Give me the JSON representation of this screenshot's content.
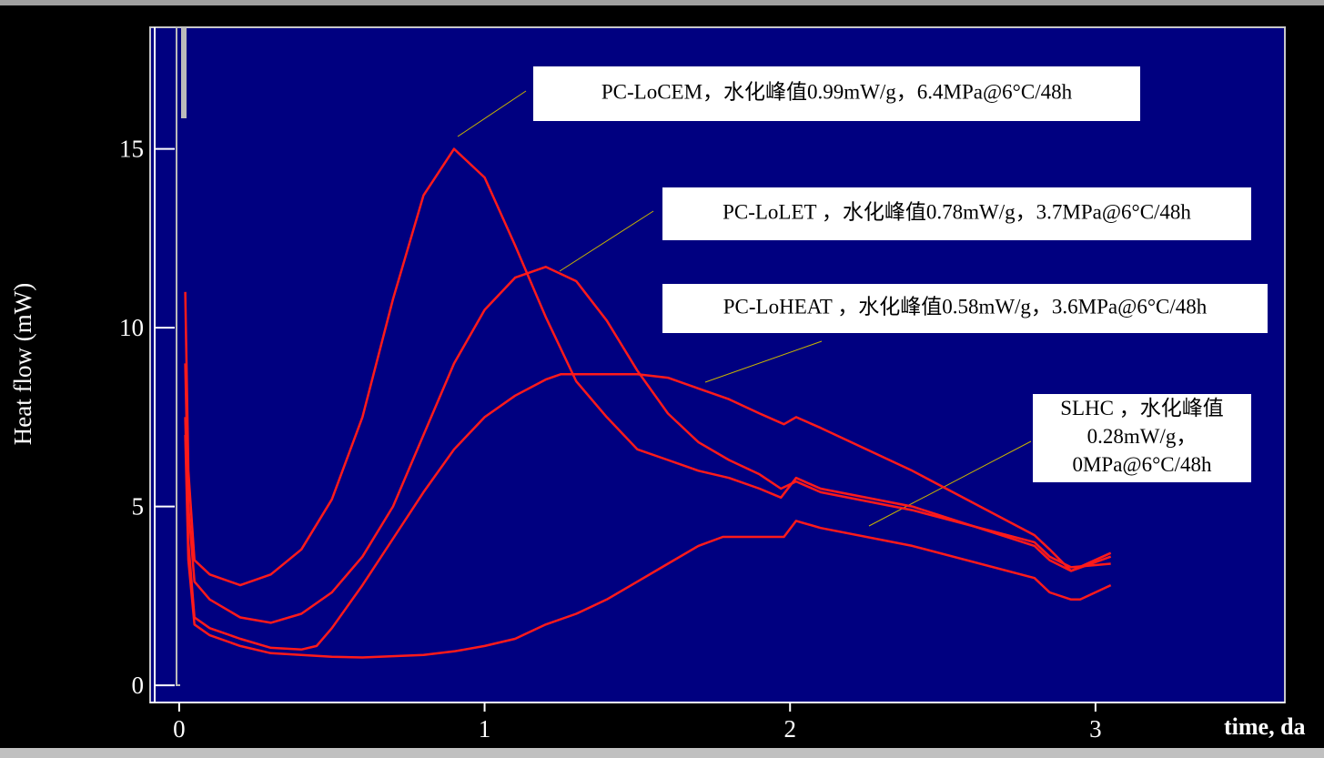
{
  "chart_data": {
    "type": "line",
    "xlabel": "time, da",
    "ylabel": "Heat flow (mW)",
    "xlim": [
      -0.095,
      3.62
    ],
    "ylim": [
      -0.48,
      18.4
    ],
    "xticks": [
      0,
      1,
      2,
      3
    ],
    "yticks": [
      0,
      5,
      10,
      15
    ],
    "series": [
      {
        "color": "#ff1a1a",
        "x": [
          0.02,
          0.03,
          0.05,
          0.1,
          0.2,
          0.3,
          0.4,
          0.5,
          0.6,
          0.7,
          0.8,
          0.9,
          1.0,
          1.1,
          1.2,
          1.3,
          1.4,
          1.5,
          1.6,
          1.7,
          1.8,
          1.9,
          1.97,
          2.02,
          2.1,
          2.4,
          2.8,
          2.85,
          2.92,
          3.05
        ],
        "values": [
          11,
          6,
          3.5,
          3.1,
          2.8,
          3.1,
          3.8,
          5.2,
          7.5,
          10.8,
          13.7,
          15,
          14.2,
          12.3,
          10.3,
          8.5,
          7.5,
          6.6,
          6.3,
          6.0,
          5.8,
          5.5,
          5.25,
          5.8,
          5.5,
          5.0,
          3.9,
          3.5,
          3.2,
          3.6
        ]
      },
      {
        "color": "#ff1a1a",
        "x": [
          0.02,
          0.03,
          0.05,
          0.1,
          0.2,
          0.3,
          0.4,
          0.5,
          0.6,
          0.7,
          0.8,
          0.9,
          1.0,
          1.1,
          1.2,
          1.3,
          1.4,
          1.5,
          1.6,
          1.7,
          1.8,
          1.9,
          1.97,
          2.02,
          2.1,
          2.4,
          2.8,
          2.85,
          2.92,
          3.05
        ],
        "values": [
          9,
          5,
          2.9,
          2.4,
          1.9,
          1.75,
          2.0,
          2.6,
          3.6,
          5.0,
          7.0,
          9.0,
          10.5,
          11.4,
          11.7,
          11.3,
          10.2,
          8.8,
          7.6,
          6.8,
          6.3,
          5.9,
          5.5,
          5.7,
          5.4,
          4.9,
          4.0,
          3.6,
          3.3,
          3.4
        ]
      },
      {
        "color": "#ff1a1a",
        "x": [
          0.02,
          0.03,
          0.05,
          0.1,
          0.2,
          0.3,
          0.4,
          0.45,
          0.5,
          0.6,
          0.7,
          0.8,
          0.9,
          1.0,
          1.1,
          1.2,
          1.25,
          1.5,
          1.6,
          1.7,
          1.8,
          1.9,
          1.98,
          2.02,
          2.1,
          2.4,
          2.8,
          2.85,
          2.92,
          3.05
        ],
        "values": [
          7.5,
          4,
          1.9,
          1.6,
          1.3,
          1.05,
          1.0,
          1.1,
          1.6,
          2.8,
          4.1,
          5.4,
          6.6,
          7.5,
          8.1,
          8.55,
          8.7,
          8.7,
          8.6,
          8.3,
          8.0,
          7.6,
          7.3,
          7.5,
          7.2,
          6.0,
          4.2,
          3.8,
          3.2,
          3.7
        ]
      },
      {
        "color": "#ff1a1a",
        "x": [
          0.02,
          0.03,
          0.05,
          0.1,
          0.2,
          0.3,
          0.5,
          0.6,
          0.8,
          0.9,
          1.0,
          1.1,
          1.2,
          1.3,
          1.4,
          1.5,
          1.6,
          1.7,
          1.78,
          1.98,
          2.02,
          2.1,
          2.4,
          2.8,
          2.85,
          2.92,
          2.95,
          3.05
        ],
        "values": [
          7,
          3.5,
          1.7,
          1.4,
          1.1,
          0.9,
          0.8,
          0.78,
          0.85,
          0.95,
          1.1,
          1.3,
          1.7,
          2.0,
          2.4,
          2.9,
          3.4,
          3.9,
          4.15,
          4.15,
          4.6,
          4.4,
          3.9,
          3.0,
          2.6,
          2.4,
          2.4,
          2.8
        ]
      }
    ],
    "annotations": [
      {
        "lines": [
          "PC-LoCEM，水化峰值0.99mW/g，6.4MPa@6°C/48h"
        ]
      },
      {
        "lines": [
          "PC-LoLET ，水化峰值0.78mW/g，3.7MPa@6°C/48h"
        ]
      },
      {
        "lines": [
          "PC-LoHEAT ，水化峰值0.58mW/g，3.6MPa@6°C/48h"
        ]
      },
      {
        "lines": [
          "SLHC ，水化峰值",
          "0.28mW/g，",
          "0MPa@6°C/48h"
        ]
      }
    ]
  }
}
